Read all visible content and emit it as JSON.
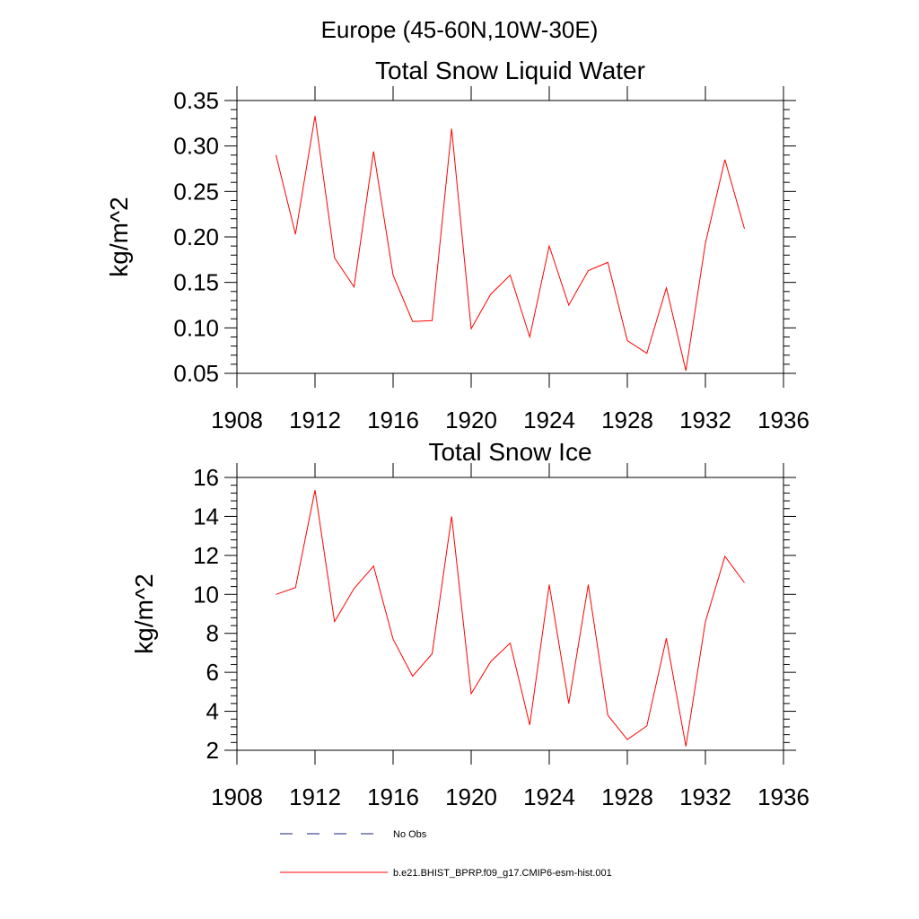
{
  "figure": {
    "supertitle": "Europe (45-60N,10W-30E)"
  },
  "chart_data": [
    {
      "type": "line",
      "title": "Total Snow Liquid Water",
      "xlabel": "",
      "ylabel": "kg/m^2",
      "xlim": [
        1908,
        1936
      ],
      "ylim": [
        0.05,
        0.35
      ],
      "x_ticks": [
        1908,
        1912,
        1916,
        1920,
        1924,
        1928,
        1932,
        1936
      ],
      "y_ticks": [
        "0.05",
        "0.10",
        "0.15",
        "0.20",
        "0.25",
        "0.30",
        "0.35"
      ],
      "grid": false,
      "x": [
        1910,
        1911,
        1912,
        1913,
        1914,
        1915,
        1916,
        1917,
        1918,
        1919,
        1920,
        1921,
        1922,
        1923,
        1924,
        1925,
        1926,
        1927,
        1928,
        1929,
        1930,
        1931,
        1932,
        1933,
        1934
      ],
      "series": [
        {
          "name": "b.e21.BHIST_BPRP.f09_g17.CMIP6-esm-hist.001",
          "color": "#ff0000",
          "values": [
            0.29,
            0.203,
            0.333,
            0.177,
            0.145,
            0.294,
            0.158,
            0.107,
            0.108,
            0.319,
            0.099,
            0.137,
            0.158,
            0.09,
            0.19,
            0.125,
            0.163,
            0.172,
            0.086,
            0.072,
            0.144,
            0.053,
            0.193,
            0.285,
            0.209
          ]
        }
      ]
    },
    {
      "type": "line",
      "title": "Total Snow Ice",
      "xlabel": "",
      "ylabel": "kg/m^2",
      "xlim": [
        1908,
        1936
      ],
      "ylim": [
        2,
        16
      ],
      "x_ticks": [
        1908,
        1912,
        1916,
        1920,
        1924,
        1928,
        1932,
        1936
      ],
      "y_ticks": [
        "2",
        "4",
        "6",
        "8",
        "10",
        "12",
        "14",
        "16"
      ],
      "grid": false,
      "x": [
        1910,
        1911,
        1912,
        1913,
        1914,
        1915,
        1916,
        1917,
        1918,
        1919,
        1920,
        1921,
        1922,
        1923,
        1924,
        1925,
        1926,
        1927,
        1928,
        1929,
        1930,
        1931,
        1932,
        1933,
        1934
      ],
      "series": [
        {
          "name": "b.e21.BHIST_BPRP.f09_g17.CMIP6-esm-hist.001",
          "color": "#ff0000",
          "values": [
            10.0,
            10.35,
            15.35,
            8.6,
            10.3,
            11.45,
            7.7,
            5.8,
            6.95,
            14.0,
            4.9,
            6.55,
            7.5,
            3.3,
            10.5,
            4.4,
            10.5,
            3.8,
            2.55,
            3.25,
            7.75,
            2.2,
            8.6,
            11.95,
            10.6
          ]
        }
      ]
    }
  ],
  "legend": {
    "placement": "bottom",
    "items": [
      {
        "label": "No Obs",
        "color": "#1a237e",
        "style": "dashed"
      },
      {
        "label": "b.e21.BHIST_BPRP.f09_g17.CMIP6-esm-hist.001",
        "color": "#ff0000",
        "style": "solid"
      }
    ]
  }
}
